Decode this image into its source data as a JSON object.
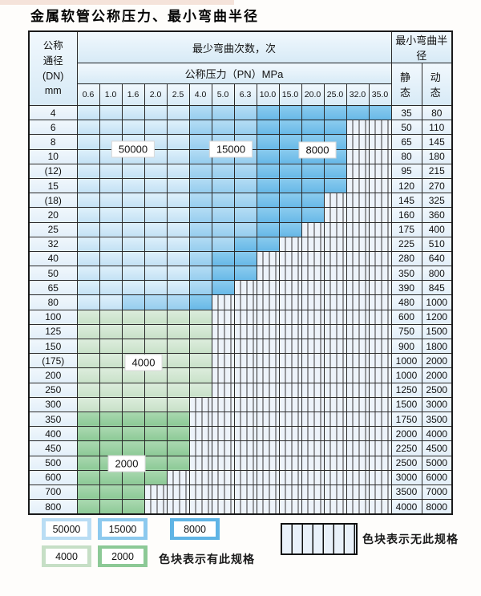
{
  "title": "金属软管公称压力、最小弯曲半径",
  "table": {
    "header": {
      "dn_lines": [
        "公称",
        "通径",
        "(DN)",
        "mm"
      ],
      "bend_cycles": "最少弯曲次数，次",
      "pressure": "公称压力（PN）MPa",
      "pressure_columns": [
        "0.6",
        "1.0",
        "1.6",
        "2.0",
        "2.5",
        "4.0",
        "5.0",
        "6.3",
        "10.0",
        "15.0",
        "20.0",
        "25.0",
        "32.0",
        "35.0"
      ],
      "radius": "最小弯曲半径",
      "static": "静 态",
      "dynamic": "动 态"
    },
    "zone_labels": {
      "z50000": "50000",
      "z15000": "15000",
      "z8000": "8000",
      "z4000": "4000",
      "z2000": "2000"
    },
    "rows": [
      {
        "dn": "4",
        "static": "35",
        "dynamic": "80",
        "bands": [
          [
            "50000",
            5
          ],
          [
            "15000",
            3
          ],
          [
            "8000",
            6
          ]
        ]
      },
      {
        "dn": "6",
        "static": "50",
        "dynamic": "110",
        "bands": [
          [
            "50000",
            5
          ],
          [
            "15000",
            3
          ],
          [
            "8000",
            4
          ],
          [
            "none",
            2
          ]
        ]
      },
      {
        "dn": "8",
        "static": "65",
        "dynamic": "145",
        "bands": [
          [
            "50000",
            5
          ],
          [
            "15000",
            3
          ],
          [
            "8000",
            4
          ],
          [
            "none",
            2
          ]
        ]
      },
      {
        "dn": "10",
        "static": "80",
        "dynamic": "180",
        "bands": [
          [
            "50000",
            5
          ],
          [
            "15000",
            3
          ],
          [
            "8000",
            4
          ],
          [
            "none",
            2
          ]
        ]
      },
      {
        "dn": "(12)",
        "static": "95",
        "dynamic": "215",
        "bands": [
          [
            "50000",
            5
          ],
          [
            "15000",
            3
          ],
          [
            "8000",
            4
          ],
          [
            "none",
            2
          ]
        ]
      },
      {
        "dn": "15",
        "static": "120",
        "dynamic": "270",
        "bands": [
          [
            "50000",
            5
          ],
          [
            "15000",
            3
          ],
          [
            "8000",
            4
          ],
          [
            "none",
            2
          ]
        ]
      },
      {
        "dn": "(18)",
        "static": "145",
        "dynamic": "325",
        "bands": [
          [
            "50000",
            5
          ],
          [
            "15000",
            3
          ],
          [
            "8000",
            3
          ],
          [
            "none",
            3
          ]
        ]
      },
      {
        "dn": "20",
        "static": "160",
        "dynamic": "360",
        "bands": [
          [
            "50000",
            5
          ],
          [
            "15000",
            3
          ],
          [
            "8000",
            3
          ],
          [
            "none",
            3
          ]
        ]
      },
      {
        "dn": "25",
        "static": "175",
        "dynamic": "400",
        "bands": [
          [
            "50000",
            5
          ],
          [
            "15000",
            3
          ],
          [
            "8000",
            2
          ],
          [
            "none",
            4
          ]
        ]
      },
      {
        "dn": "32",
        "static": "225",
        "dynamic": "510",
        "bands": [
          [
            "50000",
            5
          ],
          [
            "15000",
            2
          ],
          [
            "8000",
            2
          ],
          [
            "none",
            5
          ]
        ]
      },
      {
        "dn": "40",
        "static": "280",
        "dynamic": "640",
        "bands": [
          [
            "50000",
            5
          ],
          [
            "15000",
            1
          ],
          [
            "8000",
            2
          ],
          [
            "none",
            6
          ]
        ]
      },
      {
        "dn": "50",
        "static": "350",
        "dynamic": "800",
        "bands": [
          [
            "50000",
            5
          ],
          [
            "15000",
            1
          ],
          [
            "8000",
            2
          ],
          [
            "none",
            6
          ]
        ]
      },
      {
        "dn": "65",
        "static": "390",
        "dynamic": "845",
        "bands": [
          [
            "50000",
            5
          ],
          [
            "15000",
            1
          ],
          [
            "8000",
            1
          ],
          [
            "none",
            7
          ]
        ]
      },
      {
        "dn": "80",
        "static": "480",
        "dynamic": "1000",
        "bands": [
          [
            "50000",
            2
          ],
          [
            "15000",
            3
          ],
          [
            "8000",
            1
          ],
          [
            "none",
            8
          ]
        ]
      },
      {
        "dn": "100",
        "static": "600",
        "dynamic": "1200",
        "bands": [
          [
            "4000",
            6
          ],
          [
            "none",
            8
          ]
        ]
      },
      {
        "dn": "125",
        "static": "750",
        "dynamic": "1500",
        "bands": [
          [
            "4000",
            6
          ],
          [
            "none",
            8
          ]
        ]
      },
      {
        "dn": "150",
        "static": "900",
        "dynamic": "1800",
        "bands": [
          [
            "4000",
            6
          ],
          [
            "none",
            8
          ]
        ]
      },
      {
        "dn": "(175)",
        "static": "1000",
        "dynamic": "2000",
        "bands": [
          [
            "4000",
            6
          ],
          [
            "none",
            8
          ]
        ]
      },
      {
        "dn": "200",
        "static": "1000",
        "dynamic": "2000",
        "bands": [
          [
            "4000",
            6
          ],
          [
            "none",
            8
          ]
        ]
      },
      {
        "dn": "250",
        "static": "1250",
        "dynamic": "2500",
        "bands": [
          [
            "4000",
            6
          ],
          [
            "none",
            8
          ]
        ]
      },
      {
        "dn": "300",
        "static": "1500",
        "dynamic": "3000",
        "bands": [
          [
            "4000",
            5
          ],
          [
            "none",
            9
          ]
        ]
      },
      {
        "dn": "350",
        "static": "1750",
        "dynamic": "3500",
        "bands": [
          [
            "2000",
            5
          ],
          [
            "none",
            9
          ]
        ]
      },
      {
        "dn": "400",
        "static": "2000",
        "dynamic": "4000",
        "bands": [
          [
            "2000",
            5
          ],
          [
            "none",
            9
          ]
        ]
      },
      {
        "dn": "450",
        "static": "2250",
        "dynamic": "4500",
        "bands": [
          [
            "2000",
            5
          ],
          [
            "none",
            9
          ]
        ]
      },
      {
        "dn": "500",
        "static": "2500",
        "dynamic": "5000",
        "bands": [
          [
            "2000",
            5
          ],
          [
            "none",
            9
          ]
        ]
      },
      {
        "dn": "600",
        "static": "3000",
        "dynamic": "6000",
        "bands": [
          [
            "2000",
            4
          ],
          [
            "none",
            10
          ]
        ]
      },
      {
        "dn": "700",
        "static": "3500",
        "dynamic": "7000",
        "bands": [
          [
            "2000",
            3
          ],
          [
            "none",
            11
          ]
        ]
      },
      {
        "dn": "800",
        "static": "4000",
        "dynamic": "8000",
        "bands": [
          [
            "2000",
            3
          ],
          [
            "none",
            11
          ]
        ]
      }
    ]
  },
  "legend": {
    "available_items": [
      {
        "value": "50000",
        "zone": "50000"
      },
      {
        "value": "15000",
        "zone": "15000"
      },
      {
        "value": "8000",
        "zone": "8000"
      },
      {
        "value": "4000",
        "zone": "4000"
      },
      {
        "value": "2000",
        "zone": "2000"
      }
    ],
    "available_label": "色块表示有此规格",
    "unavailable_label": "色块表示无此规格"
  },
  "colors": {
    "zone_50000": "#cde5f6",
    "zone_15000": "#a2d3f0",
    "zone_8000": "#79c2ea",
    "zone_4000": "#d2e6d2",
    "zone_2000": "#9bd1a3",
    "no_spec_bg": "#edf3fa",
    "grid": "#2a2a2a",
    "header_bg": "#ddecf7"
  }
}
